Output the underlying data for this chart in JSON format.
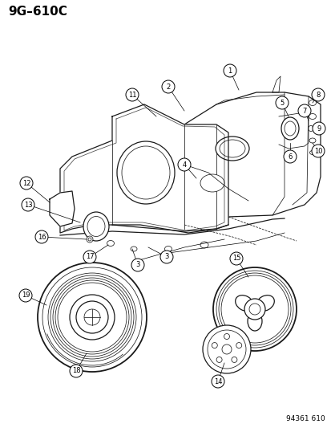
{
  "title": "9G–610C",
  "footer": "94361 610",
  "bg_color": "#ffffff",
  "title_fontsize": 11,
  "footer_fontsize": 6.5,
  "lc": "#1a1a1a",
  "lw_main": 0.9,
  "lw_thin": 0.55,
  "lw_heavy": 1.3
}
